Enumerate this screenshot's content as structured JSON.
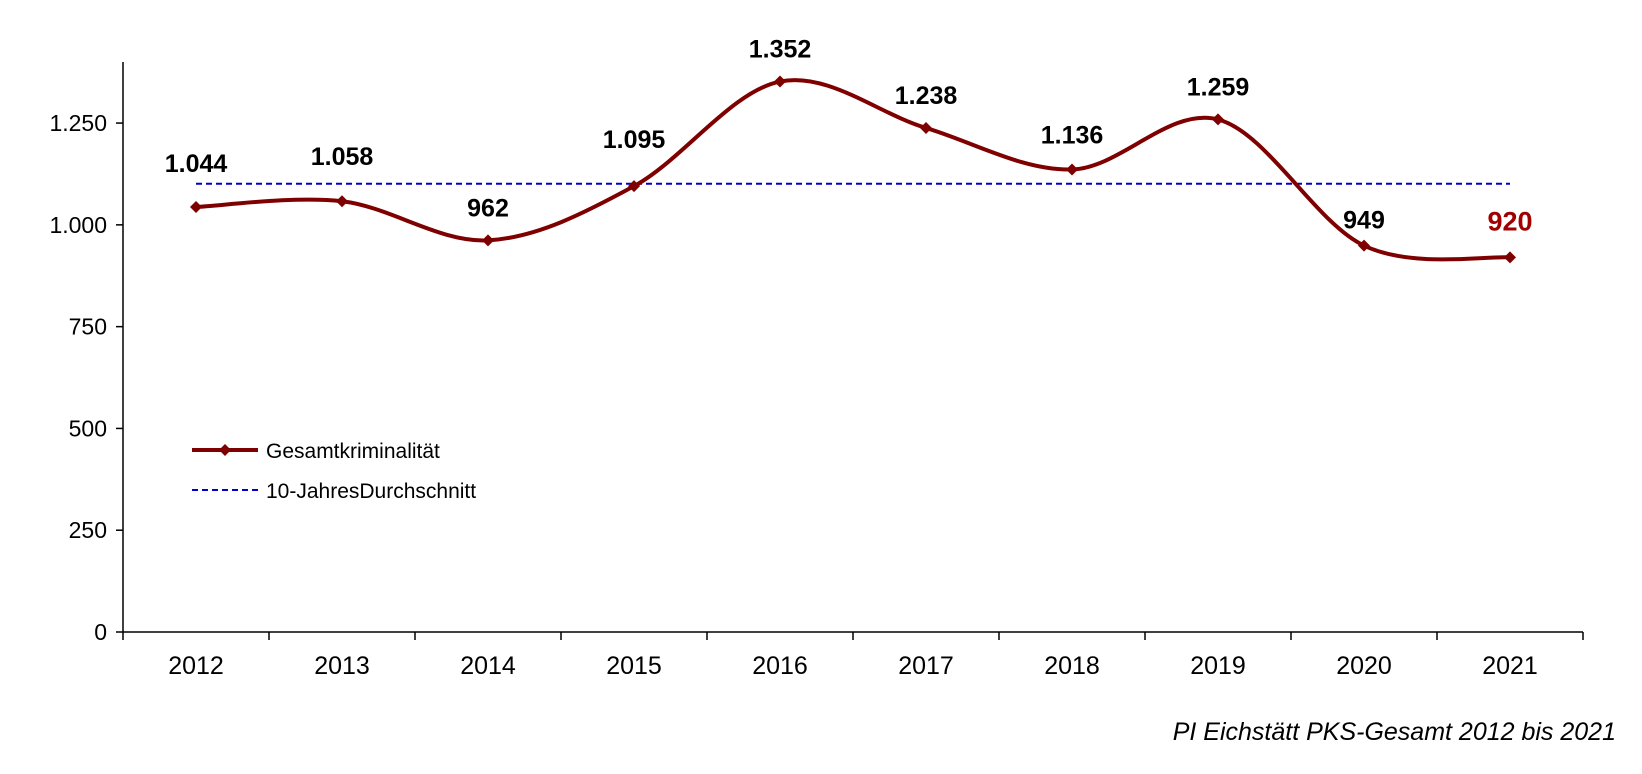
{
  "caption": "PI Eichstätt PKS-Gesamt 2012 bis 2021",
  "chart_data": {
    "type": "line",
    "title": "",
    "xlabel": "",
    "ylabel": "",
    "categories": [
      "2012",
      "2013",
      "2014",
      "2015",
      "2016",
      "2017",
      "2018",
      "2019",
      "2020",
      "2021"
    ],
    "ylim": [
      0,
      1400
    ],
    "yticks": [
      0,
      250,
      500,
      750,
      1000,
      1250
    ],
    "ytick_labels": [
      "0",
      "250",
      "500",
      "750",
      "1.000",
      "1.250"
    ],
    "grid": false,
    "legend_position": "left",
    "series": [
      {
        "name": "Gesamtkriminalität",
        "values": [
          1044,
          1058,
          962,
          1095,
          1352,
          1238,
          1136,
          1259,
          949,
          920
        ],
        "labels": [
          "1.044",
          "1.058",
          "962",
          "1.095",
          "1.352",
          "1.238",
          "1.136",
          "1.259",
          "949",
          "920"
        ],
        "color": "#7f0000",
        "style": "smoothed line with diamond markers",
        "highlight_last_label_color": "#a00000"
      },
      {
        "name": "10-JahresDurchschnitt",
        "value": 1101,
        "color": "#0000cc",
        "style": "dashed"
      }
    ]
  }
}
